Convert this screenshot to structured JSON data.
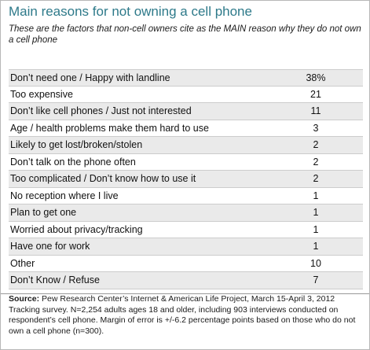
{
  "title": "Main reasons for not owning a cell phone",
  "subtitle": "These are the factors that non-cell owners cite as the MAIN reason why they do not own a cell phone",
  "chart_data": {
    "type": "table",
    "categories": [
      "Don’t need one / Happy with landline",
      "Too expensive",
      "Don’t like cell phones / Just not interested",
      "Age / health problems make them hard to use",
      "Likely to get lost/broken/stolen",
      "Don’t talk on the phone often",
      "Too complicated / Don’t know how to use it",
      "No reception where I live",
      "Plan to get one",
      "Worried about privacy/tracking",
      "Have one for work",
      "Other",
      "Don’t Know / Refuse"
    ],
    "values": [
      38,
      21,
      11,
      3,
      2,
      2,
      2,
      1,
      1,
      1,
      1,
      10,
      7
    ],
    "value_labels": [
      "38%",
      "21",
      "11",
      "3",
      "2",
      "2",
      "2",
      "1",
      "1",
      "1",
      "1",
      "10",
      "7"
    ]
  },
  "source": {
    "label": "Source:",
    "text": "Pew Research Center’s Internet & American Life Project, March 15-April 3, 2012 Tracking survey. N=2,254 adults ages 18 and older, including 903 interviews conducted on respondent’s cell phone. Margin of error is +/-6.2 percentage points based on those who do not own a cell phone (n=300)."
  }
}
